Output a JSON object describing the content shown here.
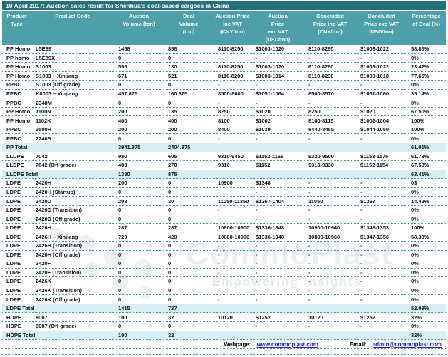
{
  "page": {
    "title": "10 April 2017: Auction sales result for Shenhua's coal-based cargoes in China"
  },
  "colors": {
    "title_bar_bg": "#24707C",
    "header_bg": "#4DA0A9",
    "total_row_bg": "#D8F0F5",
    "row_border": "#3E98A2",
    "link": "#2121C8"
  },
  "table": {
    "columns": [
      "Product\nType",
      "Product Code",
      "Auction\nVolume (ton)",
      "Deal\nVolume\n(ton)",
      "Auction Price\ninc VAT\n(CNY/ton)",
      "Auction\nPrice\nexc VAT\n(USD/ton)",
      "Concluded\nPrice inc VAT\n(CNY/ton)",
      "Concluded\nPrice exc VAT\n(USD/ton)",
      "Percentage\nof Deal (%)"
    ],
    "rows": [
      {
        "type": "data",
        "cells": [
          "PP Homo",
          "L5E89",
          "1458",
          "858",
          "8110-8250",
          "$1003-1020",
          "8110-8260",
          "$1003-1022",
          "58.85%"
        ]
      },
      {
        "type": "data",
        "cells": [
          "PP homo",
          "L5E89X",
          "0",
          "0",
          "-",
          "-",
          "-",
          "-",
          "0%"
        ]
      },
      {
        "type": "data",
        "cells": [
          "PP Homo",
          "S1003",
          "555",
          "130",
          "8110-8250",
          "$1003-1020",
          "8110-8260",
          "$1003-1022",
          "23.42%"
        ]
      },
      {
        "type": "data",
        "cells": [
          "PP Homo",
          "S1003 – Xinjiang",
          "671",
          "521",
          "8110-8200",
          "$1003-1014",
          "8110-8230",
          "$1003-1018",
          "77.65%"
        ]
      },
      {
        "type": "data",
        "cells": [
          "PPBC",
          "S1003 (Off grade)",
          "0",
          "0",
          "-",
          "-",
          "-",
          "-",
          "0%"
        ]
      },
      {
        "type": "data",
        "cells": [
          "PPBC",
          "K8003 – Xinjiang",
          "457.875",
          "160.875",
          "8500-8600",
          "$1051-1064",
          "8500-8570",
          "$1051-1060",
          "35.14%"
        ]
      },
      {
        "type": "data",
        "cells": [
          "PPBC",
          "2348M",
          "0",
          "0",
          "-",
          "-",
          "-",
          "-",
          "0%"
        ]
      },
      {
        "type": "data",
        "cells": [
          "PP Homo",
          "1100N",
          "200",
          "135",
          "8250",
          "$1020",
          "8250",
          "$1020",
          "67.50%"
        ]
      },
      {
        "type": "data",
        "cells": [
          "PP Homo",
          "1102K",
          "400",
          "400",
          "8100",
          "$1002",
          "8100-8115",
          "$1002-1004",
          "100%"
        ]
      },
      {
        "type": "data",
        "cells": [
          "PPBC",
          "2500H",
          "200",
          "200",
          "8400",
          "$1039",
          "8440-8485",
          "$1044-1050",
          "100%"
        ]
      },
      {
        "type": "data",
        "cells": [
          "PPBC",
          "2240S",
          "0",
          "0",
          "-",
          "-",
          "-",
          "-",
          "0%"
        ]
      },
      {
        "type": "total",
        "cells": [
          "PP Total",
          "",
          "3941.875",
          "2404.875",
          "",
          "",
          "",
          "",
          "61.01%"
        ]
      },
      {
        "type": "data",
        "cells": [
          "LLDPE",
          "7042",
          "980",
          "605",
          "9310-9450",
          "$1152-1169",
          "9320-9500",
          "$1153-1175",
          "61.73%"
        ]
      },
      {
        "type": "data",
        "cells": [
          "LLDPE",
          "7042 (Off grade)",
          "400",
          "270",
          "9310",
          "$1152",
          "9310-9330",
          "$1152-1154",
          "67.50%"
        ]
      },
      {
        "type": "total",
        "cells": [
          "LLDPE Total",
          "",
          "1380",
          "875",
          "",
          "",
          "",
          "",
          "63.41%"
        ]
      },
      {
        "type": "data",
        "cells": [
          "LDPE",
          "2420H",
          "200",
          "0",
          "10900",
          "$1348",
          "-",
          "-",
          "0$"
        ]
      },
      {
        "type": "data",
        "cells": [
          "LDPE",
          "2420H (Startup)",
          "0",
          "0",
          "-",
          "-",
          "-",
          "-",
          "0%"
        ]
      },
      {
        "type": "data",
        "cells": [
          "LDPE",
          "2420D",
          "208",
          "30",
          "11050-11350",
          "$1367-1404",
          "11050",
          "$1367",
          "14.42%"
        ]
      },
      {
        "type": "data",
        "cells": [
          "LDPE",
          "2420D (Transition)",
          "0",
          "0",
          "-",
          "-",
          "-",
          "-",
          "0%"
        ]
      },
      {
        "type": "data",
        "cells": [
          "LDPE",
          "2420D (Off grade)",
          "0",
          "0",
          "-",
          "-",
          "-",
          "-",
          "0%"
        ]
      },
      {
        "type": "data",
        "cells": [
          "LDPE",
          "2426H",
          "287",
          "287",
          "10800-10900",
          "$1336-1348",
          "10900-10940",
          "$1348-1353",
          "100%"
        ]
      },
      {
        "type": "data",
        "cells": [
          "LDPE",
          "2426H – Xinjiang",
          "720",
          "420",
          "10800-10900",
          "$1336-1348",
          "10890-10960",
          "$1347-1356",
          "58.33%"
        ]
      },
      {
        "type": "data",
        "cells": [
          "LDPE",
          "2426H (Transition)",
          "0",
          "0",
          "-",
          "-",
          "-",
          "-",
          "0%"
        ]
      },
      {
        "type": "data",
        "cells": [
          "LDPE",
          "2426H (Off grade)",
          "0",
          "0",
          "-",
          "-",
          "-",
          "-",
          "0%"
        ]
      },
      {
        "type": "data",
        "cells": [
          "LDPE",
          "2420F",
          "0",
          "0",
          "-",
          "-",
          "-",
          "-",
          "0%"
        ]
      },
      {
        "type": "data",
        "cells": [
          "LDPE",
          "2420F (Transition)",
          "0",
          "0",
          "-",
          "-",
          "-",
          "-",
          "0%"
        ]
      },
      {
        "type": "data",
        "cells": [
          "LDPE",
          "2426K",
          "0",
          "0",
          "-",
          "-",
          "-",
          "-",
          "0%"
        ]
      },
      {
        "type": "data",
        "cells": [
          "LDPE",
          "2426K (Transition)",
          "0",
          "0",
          "-",
          "-",
          "-",
          "-",
          "0%"
        ]
      },
      {
        "type": "data",
        "cells": [
          "LDPE",
          "2426K (Off grade)",
          "0",
          "0",
          "-",
          "-",
          "-",
          "-",
          "0%"
        ]
      },
      {
        "type": "total",
        "cells": [
          "LDPE Total",
          "",
          "1415",
          "737",
          "",
          "",
          "",
          "",
          "52.08%"
        ]
      },
      {
        "type": "data",
        "cells": [
          "HDPE",
          "8007",
          "100",
          "32",
          "10120",
          "$1252",
          "10120",
          "$1252",
          "32%"
        ]
      },
      {
        "type": "data",
        "cells": [
          "HDPE",
          "8007 (Off grade)",
          "0",
          "0",
          "-",
          "-",
          "-",
          "-",
          "0%"
        ]
      },
      {
        "type": "total",
        "cells": [
          "HDPE Total",
          "",
          "100",
          "32",
          "",
          "",
          "",
          "",
          "32%"
        ]
      }
    ]
  },
  "footer": {
    "webpage_label": "Webpage:",
    "webpage_url": "www.commoplast.com",
    "email_label": "Email:",
    "email_address": "admin@commoplast.com"
  },
  "watermark": {
    "brand": "CommoPlast",
    "tagline": "Empowering Insights"
  }
}
